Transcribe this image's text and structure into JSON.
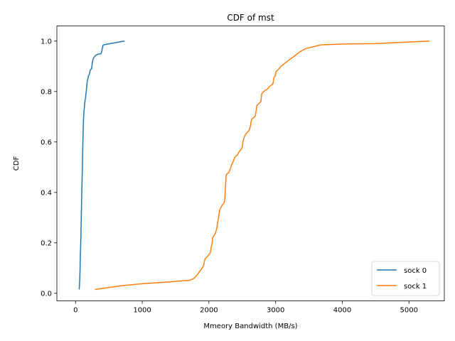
{
  "chart_data": {
    "type": "line",
    "title": "CDF of mst",
    "xlabel": "Mmeory Bandwidth (MB/s)",
    "ylabel": "CDF",
    "xlim": [
      -280,
      5530
    ],
    "ylim": [
      -0.03,
      1.06
    ],
    "xticks": [
      0,
      1000,
      2000,
      3000,
      4000,
      5000
    ],
    "yticks": [
      0.0,
      0.2,
      0.4,
      0.6,
      0.8,
      1.0
    ],
    "xtick_labels": [
      "0",
      "1000",
      "2000",
      "3000",
      "4000",
      "5000"
    ],
    "ytick_labels": [
      "0.0",
      "0.2",
      "0.4",
      "0.6",
      "0.8",
      "1.0"
    ],
    "grid": false,
    "legend_position": "lower right",
    "series": [
      {
        "name": "sock 0",
        "color": "#1f77b4",
        "x": [
          55,
          62,
          68,
          72,
          78,
          82,
          86,
          90,
          94,
          98,
          102,
          106,
          110,
          112,
          115,
          118,
          122,
          126,
          130,
          136,
          140,
          150,
          155,
          160,
          175,
          180,
          185,
          192,
          200,
          210,
          220,
          240,
          255,
          265,
          270,
          290,
          310,
          340,
          380,
          395,
          400,
          405,
          410,
          420,
          735
        ],
        "y": [
          0.015,
          0.05,
          0.1,
          0.15,
          0.2,
          0.25,
          0.3,
          0.35,
          0.4,
          0.45,
          0.5,
          0.55,
          0.6,
          0.62,
          0.65,
          0.68,
          0.7,
          0.72,
          0.73,
          0.75,
          0.76,
          0.775,
          0.79,
          0.8,
          0.84,
          0.845,
          0.85,
          0.86,
          0.865,
          0.87,
          0.885,
          0.89,
          0.92,
          0.93,
          0.932,
          0.94,
          0.945,
          0.948,
          0.95,
          0.96,
          0.97,
          0.975,
          0.982,
          0.985,
          1.0
        ]
      },
      {
        "name": "sock 1",
        "color": "#ff7f0e",
        "x": [
          290,
          680,
          1000,
          1400,
          1720,
          1780,
          1830,
          1870,
          1900,
          1920,
          1940,
          1990,
          2020,
          2040,
          2050,
          2055,
          2080,
          2100,
          2120,
          2130,
          2145,
          2160,
          2200,
          2230,
          2240,
          2250,
          2260,
          2300,
          2330,
          2340,
          2360,
          2390,
          2430,
          2450,
          2480,
          2500,
          2510,
          2530,
          2550,
          2600,
          2620,
          2640,
          2660,
          2690,
          2700,
          2720,
          2740,
          2780,
          2790,
          2820,
          2850,
          2880,
          2910,
          2960,
          2970,
          2975,
          2990,
          3010,
          3030,
          3050,
          3080,
          3200,
          3280,
          3350,
          3450,
          3680,
          4000,
          4500,
          5310
        ],
        "y": [
          0.015,
          0.03,
          0.038,
          0.045,
          0.052,
          0.06,
          0.075,
          0.09,
          0.1,
          0.11,
          0.135,
          0.15,
          0.16,
          0.19,
          0.2,
          0.22,
          0.23,
          0.24,
          0.26,
          0.28,
          0.3,
          0.33,
          0.35,
          0.36,
          0.38,
          0.43,
          0.47,
          0.48,
          0.5,
          0.51,
          0.52,
          0.54,
          0.55,
          0.56,
          0.57,
          0.58,
          0.6,
          0.62,
          0.63,
          0.645,
          0.66,
          0.69,
          0.695,
          0.7,
          0.71,
          0.745,
          0.75,
          0.76,
          0.79,
          0.8,
          0.805,
          0.81,
          0.82,
          0.83,
          0.85,
          0.855,
          0.86,
          0.88,
          0.885,
          0.89,
          0.9,
          0.925,
          0.94,
          0.955,
          0.97,
          0.985,
          0.988,
          0.99,
          1.0
        ]
      }
    ]
  }
}
